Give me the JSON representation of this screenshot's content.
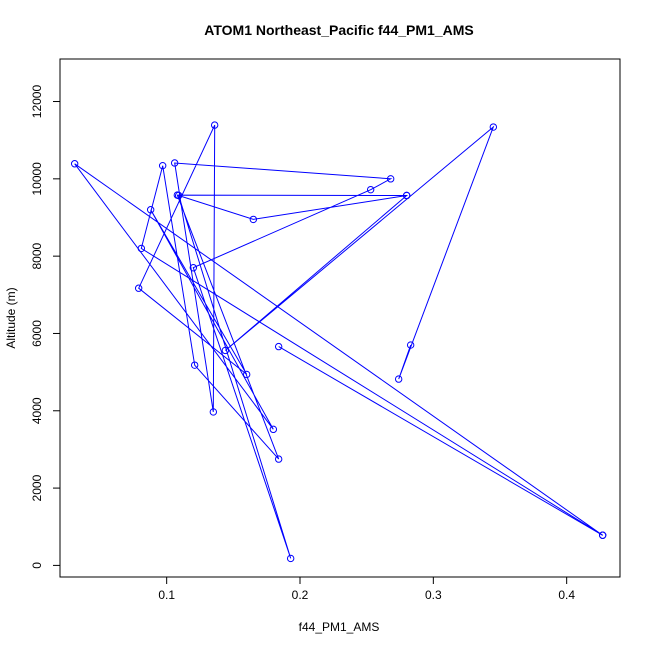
{
  "chart_data": {
    "type": "line",
    "title": "ATOM1 Northeast_Pacific f44_PM1_AMS",
    "xlabel": "f44_PM1_AMS",
    "ylabel": "Altitude (m)",
    "xlim": [
      0.02,
      0.44
    ],
    "ylim": [
      -300,
      13100
    ],
    "x_ticks": [
      0.1,
      0.2,
      0.3,
      0.4
    ],
    "x_tick_labels": [
      "0.1",
      "0.2",
      "0.3",
      "0.4"
    ],
    "y_ticks": [
      0,
      2000,
      4000,
      6000,
      8000,
      10000,
      12000
    ],
    "y_tick_labels": [
      "0",
      "2000",
      "4000",
      "6000",
      "8000",
      "10000",
      "12000"
    ],
    "series": [
      {
        "color": "#0000ff",
        "marker": "open-circle",
        "points": [
          {
            "x": 0.283,
            "y": 5700
          },
          {
            "x": 0.274,
            "y": 4820
          },
          {
            "x": 0.345,
            "y": 11340
          },
          {
            "x": 0.144,
            "y": 5560
          },
          {
            "x": 0.28,
            "y": 9570
          },
          {
            "x": 0.108,
            "y": 9580
          },
          {
            "x": 0.184,
            "y": 2750
          },
          {
            "x": 0.121,
            "y": 5180
          },
          {
            "x": 0.097,
            "y": 10340
          },
          {
            "x": 0.081,
            "y": 8200
          },
          {
            "x": 0.427,
            "y": 780
          },
          {
            "x": 0.031,
            "y": 10390
          },
          {
            "x": 0.18,
            "y": 3520
          },
          {
            "x": 0.088,
            "y": 9200
          },
          {
            "x": 0.16,
            "y": 4940
          },
          {
            "x": 0.079,
            "y": 7170
          },
          {
            "x": 0.136,
            "y": 11390
          },
          {
            "x": 0.135,
            "y": 3970
          },
          {
            "x": 0.106,
            "y": 10410
          },
          {
            "x": 0.268,
            "y": 10000
          },
          {
            "x": 0.253,
            "y": 9720
          },
          {
            "x": 0.12,
            "y": 7700
          },
          {
            "x": 0.193,
            "y": 180
          },
          {
            "x": 0.109,
            "y": 9570
          },
          {
            "x": 0.165,
            "y": 8950
          },
          {
            "x": 0.28,
            "y": 9570
          }
        ]
      },
      {
        "color": "#0000ff",
        "marker": "open-circle",
        "points": [
          {
            "x": 0.184,
            "y": 5660
          },
          {
            "x": 0.427,
            "y": 780
          }
        ]
      }
    ]
  }
}
